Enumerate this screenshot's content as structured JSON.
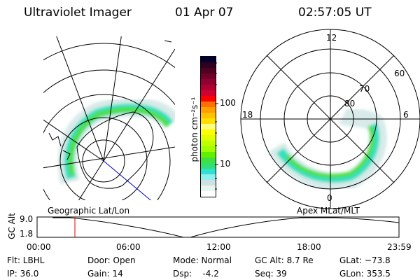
{
  "header": {
    "instrument": "Ultraviolet Imager",
    "date": "01 Apr 07",
    "time": "02:57:05 UT"
  },
  "colorbar": {
    "label": "photon cm⁻²s⁻¹",
    "ticks": [
      "100",
      "10"
    ],
    "colors": [
      "#000030",
      "#300020",
      "#500020",
      "#700028",
      "#900030",
      "#b00030",
      "#d00030",
      "#ff0000",
      "#ff7000",
      "#ffa000",
      "#ffc000",
      "#ffe000",
      "#ffff80",
      "#ffff00",
      "#e0ff00",
      "#c0ff00",
      "#a0ff00",
      "#60f000",
      "#40e040",
      "#30e070",
      "#30e0d0",
      "#90f0f0",
      "#d0e0e0",
      "#e8f4ee",
      "#ffffff"
    ]
  },
  "polar_plot": {
    "mlt_labels": [
      "12",
      "18",
      "6",
      "0"
    ],
    "lat_labels": [
      "60",
      "70",
      "80"
    ]
  },
  "timeline": {
    "left_title": "Geographic Lat/Lon",
    "right_title": "Apex MLat/MLT",
    "y_label": "GC Alt",
    "y_ticks": [
      "9.0",
      "1.8"
    ],
    "x_ticks": [
      "00:00",
      "06:00",
      "12:00",
      "18:00",
      "23:59"
    ],
    "marker_color": "#e00000"
  },
  "info": {
    "flt": "Flt: LBHL",
    "ip": "IP: 36.0",
    "door": "Door: Open",
    "gain": "Gain: 14",
    "mode": "Mode: Normal",
    "dsp": "Dsp:    -4.2",
    "gc_alt": "GC Alt: 8.7 Re",
    "seq": "Seq: 39",
    "glat": "GLat: −73.8",
    "glon": "GLon: 353.5"
  }
}
